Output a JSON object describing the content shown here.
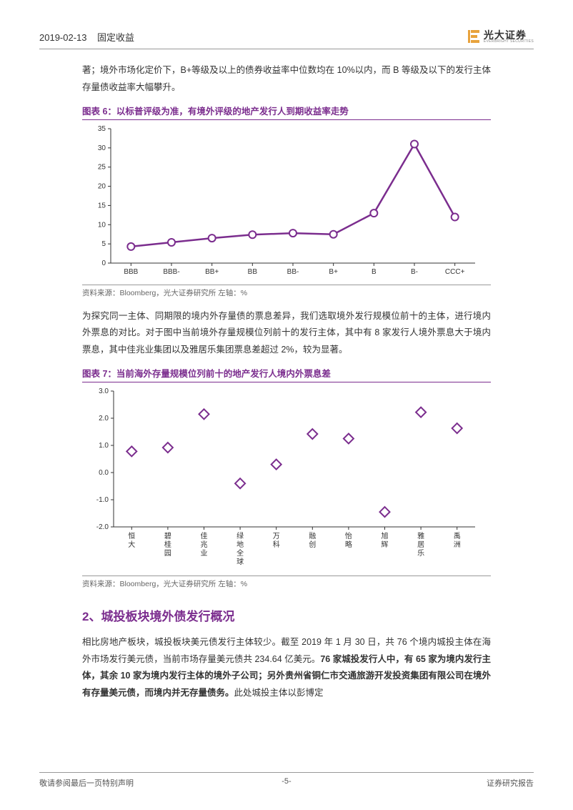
{
  "header": {
    "date": "2019-02-13",
    "category": "固定收益",
    "logo_cn": "光大证券",
    "logo_en": "EVERBRIGHT SECURITIES"
  },
  "intro_para": "著；境外市场化定价下，B+等级及以上的债券收益率中位数均在 10%以内，而 B 等级及以下的发行主体存量债收益率大幅攀升。",
  "chart6": {
    "title": "图表 6：以标普评级为准，有境外评级的地产发行人到期收益率走势",
    "type": "line",
    "categories": [
      "BBB",
      "BBB-",
      "BB+",
      "BB",
      "BB-",
      "B+",
      "B",
      "B-",
      "CCC+"
    ],
    "values": [
      4.3,
      5.4,
      6.5,
      7.4,
      7.8,
      7.5,
      13.0,
      31.0,
      12.0
    ],
    "ylim": [
      0,
      35
    ],
    "ytick_step": 5,
    "line_color": "#7b2d8e",
    "line_width": 2.5,
    "marker_style": "circle",
    "marker_size": 5,
    "marker_fill": "#ffffff",
    "marker_stroke": "#7b2d8e",
    "marker_stroke_width": 2,
    "background_color": "#ffffff",
    "grid": false,
    "axis_color": "#333333",
    "tick_fontsize": 10,
    "source": "资料来源：Bloomberg，光大证券研究所    左轴：%"
  },
  "mid_para": "为探究同一主体、同期限的境内外存量债的票息差异，我们选取境外发行规模位前十的主体，进行境内外票息的对比。对于图中当前境外存量规模位列前十的发行主体，其中有 8 家发行人境外票息大于境内票息，其中佳兆业集团以及雅居乐集团票息差超过 2%，较为显著。",
  "chart7": {
    "title": "图表 7：当前海外存量规模位列前十的地产发行人境内外票息差",
    "type": "scatter",
    "categories": [
      "恒大",
      "碧桂园",
      "佳兆业",
      "绿地全球",
      "万科",
      "融创",
      "怡略",
      "旭辉",
      "雅居乐",
      "禹洲"
    ],
    "values": [
      0.78,
      0.92,
      2.15,
      -0.4,
      0.3,
      1.42,
      1.25,
      -1.45,
      2.22,
      1.63
    ],
    "ylim": [
      -2.0,
      3.0
    ],
    "ytick_step": 1.0,
    "marker_style": "diamond",
    "marker_size": 7,
    "marker_fill": "#ffffff",
    "marker_stroke": "#7b2d8e",
    "marker_stroke_width": 2,
    "background_color": "#ffffff",
    "grid": false,
    "axis_color": "#333333",
    "tick_fontsize": 10,
    "source": "资料来源：Bloomberg，光大证券研究所    左轴：%"
  },
  "section2": {
    "title": "2、城投板块境外债发行概况",
    "para": "相比房地产板块，城投板块美元债发行主体较少。截至 2019 年 1 月 30 日，共 76 个境内城投主体在海外市场发行美元债，当前市场存量美元债共 234.64 亿美元。<b>76 家城投发行人中，有 65 家为境内发行主体，其余 10 家为境内发行主体的境外子公司；另外贵州省铜仁市交通旅游开发投资集团有限公司在境外有存量美元债，而境内并无存量债务。</b>此处城投主体以彭博定"
  },
  "footer": {
    "left": "敬请参阅最后一页特别声明",
    "center": "-5-",
    "right": "证券研究报告"
  },
  "colors": {
    "brand_purple": "#7b2d8e",
    "brand_orange": "#e8a33d",
    "text": "#333333",
    "border": "#999999"
  }
}
